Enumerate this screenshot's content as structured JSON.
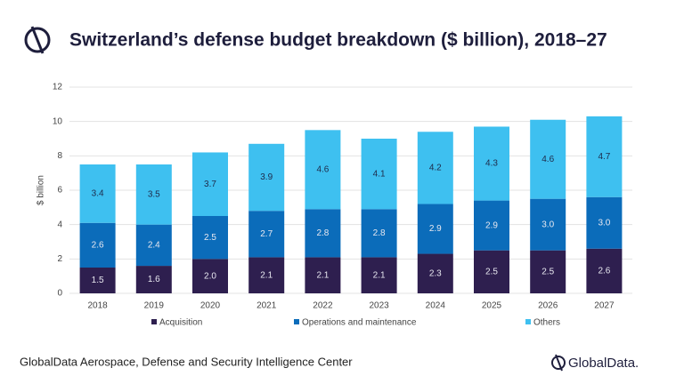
{
  "chart_data": {
    "type": "stacked-bar",
    "title": "Switzerland’s defense budget breakdown ($ billion), 2018–27",
    "y_label": "$ billion",
    "categories": [
      "2018",
      "2019",
      "2020",
      "2021",
      "2022",
      "2023",
      "2024",
      "2025",
      "2026",
      "2027"
    ],
    "series": [
      {
        "name": "Acquisition",
        "color": "#2e1f4f",
        "values": [
          1.5,
          1.6,
          2.0,
          2.1,
          2.1,
          2.1,
          2.3,
          2.5,
          2.5,
          2.6
        ],
        "value_labels": [
          "1.5",
          "1.6",
          "2.0",
          "2.1",
          "2.1",
          "2.1",
          "2.3",
          "2.5",
          "2.5",
          "2.6"
        ]
      },
      {
        "name": "Operations and maintenance",
        "color": "#0b6cba",
        "values": [
          2.6,
          2.4,
          2.5,
          2.7,
          2.8,
          2.8,
          2.9,
          2.9,
          3.0,
          3.0
        ],
        "value_labels": [
          "2.6",
          "2.4",
          "2.5",
          "2.7",
          "2.8",
          "2.8",
          "2.9",
          "2.9",
          "3.0",
          "3.0"
        ]
      },
      {
        "name": "Others",
        "color": "#3ec0f0",
        "values": [
          3.4,
          3.5,
          3.7,
          3.9,
          4.6,
          4.1,
          4.2,
          4.3,
          4.6,
          4.7
        ],
        "value_labels": [
          "3.4",
          "3.5",
          "3.7",
          "3.9",
          "4.6",
          "4.1",
          "4.2",
          "4.3",
          "4.6",
          "4.7"
        ]
      }
    ],
    "ylim": [
      0,
      12
    ],
    "yticks": [
      0,
      2,
      4,
      6,
      8,
      10,
      12
    ],
    "grid": true,
    "source": "GlobalData Aerospace, Defense and Security Intelligence Center",
    "brand": "GlobalData."
  }
}
